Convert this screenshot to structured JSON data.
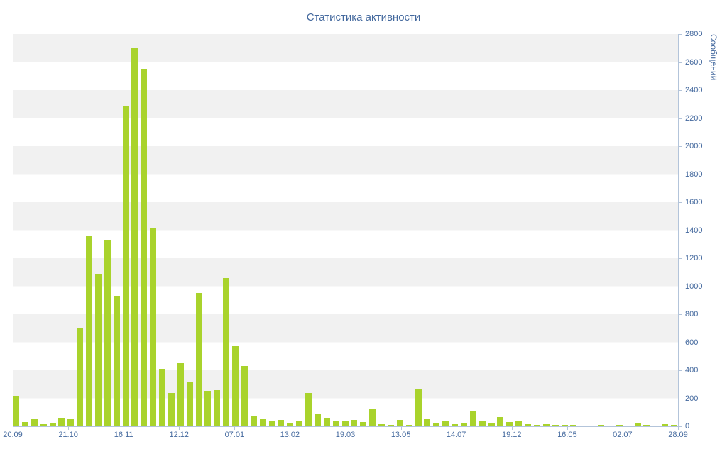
{
  "chart_data": {
    "type": "bar",
    "title": "Статистика активности",
    "ylabel": "Сообщений",
    "xlabel": "",
    "ylim": [
      0,
      2800
    ],
    "y_tick_step": 200,
    "y_tick_labels": [
      0,
      200,
      400,
      600,
      800,
      1000,
      1200,
      1400,
      1600,
      1800,
      2000,
      2200,
      2400,
      2600,
      2800
    ],
    "x_tick_labels": [
      "20.09",
      "21.10",
      "16.11",
      "12.12",
      "07.01",
      "13.02",
      "19.03",
      "13.05",
      "14.07",
      "19.12",
      "16.05",
      "02.07",
      "28.09"
    ],
    "values": [
      220,
      30,
      50,
      15,
      20,
      60,
      55,
      700,
      1360,
      1090,
      1330,
      930,
      2290,
      2700,
      2550,
      1420,
      410,
      240,
      450,
      320,
      950,
      255,
      260,
      1060,
      570,
      430,
      75,
      50,
      40,
      45,
      20,
      35,
      240,
      85,
      60,
      35,
      40,
      45,
      30,
      125,
      15,
      10,
      45,
      10,
      265,
      50,
      25,
      40,
      15,
      20,
      110,
      35,
      20,
      65,
      30,
      35,
      15,
      10,
      15,
      10,
      8,
      8,
      5,
      5,
      8,
      5,
      10,
      5,
      20,
      8,
      5,
      15,
      10
    ],
    "grid": "horizontal-stripes",
    "legend": "none",
    "colors": {
      "bar": "#a9d32c",
      "stripe": "#f1f1f1",
      "text": "#44699e",
      "axis": "#b3c4da",
      "background": "#ffffff"
    }
  }
}
